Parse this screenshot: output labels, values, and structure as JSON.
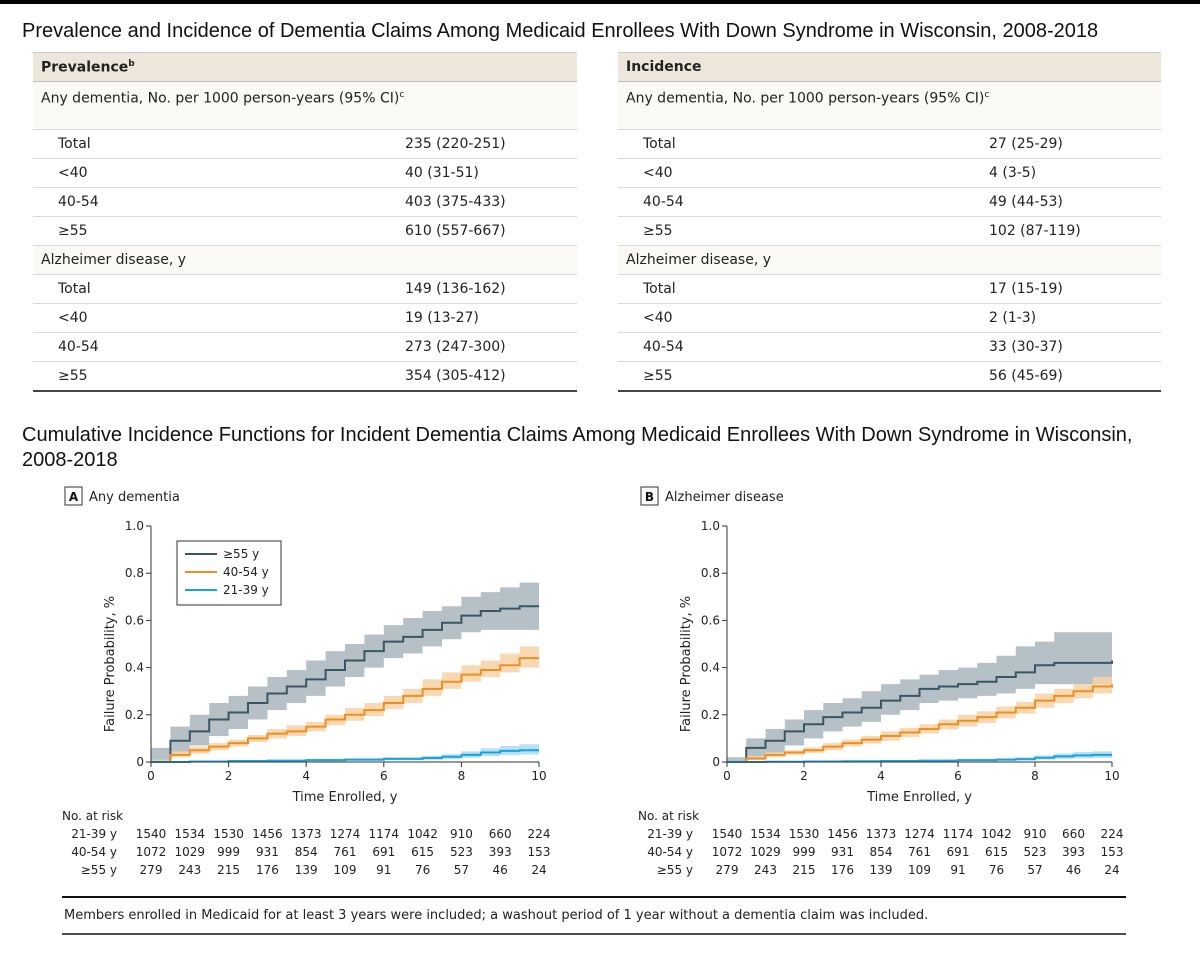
{
  "headings": {
    "table_title": "Prevalence and Incidence of Dementia Claims Among Medicaid Enrollees With Down Syndrome in Wisconsin, 2008-2018",
    "figure_title": "Cumulative Incidence Functions for Incident Dementia Claims Among Medicaid Enrollees With Down Syndrome in Wisconsin, 2008-2018"
  },
  "tables": {
    "prevalence": {
      "header": "Prevalence",
      "header_sup": "b",
      "group1": "Any dementia, No. per 1000 person-years (95% CI)",
      "group1_sup": "c",
      "group1_rows": [
        {
          "label": "Total",
          "value": "235 (220-251)"
        },
        {
          "label": "<40",
          "value": "40 (31-51)"
        },
        {
          "label": "40-54",
          "value": "403 (375-433)"
        },
        {
          "label": "≥55",
          "value": "610 (557-667)"
        }
      ],
      "group2": "Alzheimer disease, y",
      "group2_rows": [
        {
          "label": "Total",
          "value": "149 (136-162)"
        },
        {
          "label": "<40",
          "value": "19 (13-27)"
        },
        {
          "label": "40-54",
          "value": "273 (247-300)"
        },
        {
          "label": "≥55",
          "value": "354 (305-412)"
        }
      ]
    },
    "incidence": {
      "header": "Incidence",
      "header_sup": "",
      "group1": "Any dementia, No. per 1000 person-years (95% CI)",
      "group1_sup": "c",
      "group1_rows": [
        {
          "label": "Total",
          "value": "27 (25-29)"
        },
        {
          "label": "<40",
          "value": "4 (3-5)"
        },
        {
          "label": "40-54",
          "value": "49 (44-53)"
        },
        {
          "label": "≥55",
          "value": "102 (87-119)"
        }
      ],
      "group2": "Alzheimer disease, y",
      "group2_rows": [
        {
          "label": "Total",
          "value": "17 (15-19)"
        },
        {
          "label": "<40",
          "value": "2 (1-3)"
        },
        {
          "label": "40-54",
          "value": "33 (30-37)"
        },
        {
          "label": "≥55",
          "value": "56 (45-69)"
        }
      ]
    }
  },
  "colors": {
    "ge55": "#3a5563",
    "ge55_band": "#a8b6bd",
    "age40_54": "#ef8f1f",
    "age40_54_band": "#f8d2a6",
    "age21_39": "#1aa3de",
    "age21_39_band": "#a9dcf3",
    "axis": "#333333"
  },
  "footnote": "Members enrolled in Medicaid for at least 3 years were included; a washout period of 1 year without a dementia claim was included.",
  "chart_data": [
    {
      "type": "line",
      "panel_letter": "A",
      "title": "Any dementia",
      "xlabel": "Time Enrolled, y",
      "ylabel": "Failure Probability, %",
      "xlim": [
        0,
        10
      ],
      "ylim": [
        0,
        1.0
      ],
      "xticks": [
        0,
        2,
        4,
        6,
        8,
        10
      ],
      "yticks": [
        0,
        0.2,
        0.4,
        0.6,
        0.8,
        1.0
      ],
      "ytick_labels": [
        "0",
        "0.2",
        "0.4",
        "0.6",
        "0.8",
        "1.0"
      ],
      "legend_position": "top-left",
      "series": [
        {
          "name": "≥55 y",
          "color_key": "ge55",
          "x": [
            0,
            0.5,
            1,
            1.5,
            2,
            2.5,
            3,
            3.5,
            4,
            4.5,
            5,
            5.5,
            6,
            6.5,
            7,
            7.5,
            8,
            8.5,
            9,
            9.5,
            10
          ],
          "y": [
            0,
            0.09,
            0.13,
            0.18,
            0.21,
            0.25,
            0.29,
            0.32,
            0.35,
            0.39,
            0.43,
            0.47,
            0.51,
            0.53,
            0.56,
            0.59,
            0.62,
            0.64,
            0.65,
            0.66,
            0.66
          ],
          "lower": [
            0,
            0.04,
            0.07,
            0.11,
            0.14,
            0.18,
            0.22,
            0.25,
            0.28,
            0.32,
            0.36,
            0.4,
            0.44,
            0.46,
            0.49,
            0.52,
            0.55,
            0.56,
            0.56,
            0.56,
            0.56
          ],
          "upper": [
            0.06,
            0.15,
            0.2,
            0.25,
            0.28,
            0.32,
            0.36,
            0.39,
            0.43,
            0.47,
            0.5,
            0.54,
            0.58,
            0.61,
            0.64,
            0.66,
            0.7,
            0.72,
            0.74,
            0.76,
            0.76
          ]
        },
        {
          "name": "40-54 y",
          "color_key": "age40_54",
          "x": [
            0,
            0.5,
            1,
            1.5,
            2,
            2.5,
            3,
            3.5,
            4,
            4.5,
            5,
            5.5,
            6,
            6.5,
            7,
            7.5,
            8,
            8.5,
            9,
            9.5,
            10
          ],
          "y": [
            0,
            0.03,
            0.05,
            0.065,
            0.08,
            0.1,
            0.12,
            0.13,
            0.15,
            0.18,
            0.2,
            0.22,
            0.25,
            0.28,
            0.31,
            0.34,
            0.37,
            0.39,
            0.41,
            0.44,
            0.44
          ],
          "lower": [
            0,
            0.02,
            0.035,
            0.05,
            0.065,
            0.085,
            0.1,
            0.11,
            0.13,
            0.155,
            0.175,
            0.195,
            0.225,
            0.25,
            0.28,
            0.31,
            0.34,
            0.36,
            0.38,
            0.4,
            0.4
          ],
          "upper": [
            0.01,
            0.045,
            0.065,
            0.08,
            0.095,
            0.115,
            0.14,
            0.155,
            0.17,
            0.2,
            0.23,
            0.25,
            0.28,
            0.31,
            0.35,
            0.38,
            0.41,
            0.43,
            0.46,
            0.49,
            0.49
          ]
        },
        {
          "name": "21-39 y",
          "color_key": "age21_39",
          "x": [
            0,
            1,
            2,
            3,
            4,
            5,
            6,
            7,
            7.5,
            8,
            8.5,
            9,
            9.5,
            10
          ],
          "y": [
            0,
            0.002,
            0.004,
            0.006,
            0.008,
            0.01,
            0.013,
            0.017,
            0.022,
            0.03,
            0.04,
            0.047,
            0.05,
            0.05
          ],
          "lower": [
            0,
            0,
            0.001,
            0.002,
            0.003,
            0.005,
            0.007,
            0.009,
            0.012,
            0.018,
            0.025,
            0.03,
            0.032,
            0.032
          ],
          "upper": [
            0,
            0.005,
            0.008,
            0.01,
            0.013,
            0.016,
            0.02,
            0.026,
            0.033,
            0.045,
            0.058,
            0.068,
            0.075,
            0.075
          ]
        }
      ],
      "risk_table": {
        "title": "No. at risk",
        "times": [
          0,
          1,
          2,
          3,
          4,
          5,
          6,
          7,
          8,
          9,
          10
        ],
        "rows": [
          {
            "label": "21-39 y",
            "values": [
              "1540",
              "1534",
              "1530",
              "1456",
              "1373",
              "1274",
              "1174",
              "1042",
              "910",
              "660",
              "224"
            ]
          },
          {
            "label": "40-54 y",
            "values": [
              "1072",
              "1029",
              "999",
              "931",
              "854",
              "761",
              "691",
              "615",
              "523",
              "393",
              "153"
            ]
          },
          {
            "label": "≥55 y",
            "values": [
              "279",
              "243",
              "215",
              "176",
              "139",
              "109",
              "91",
              "76",
              "57",
              "46",
              "24"
            ]
          }
        ]
      }
    },
    {
      "type": "line",
      "panel_letter": "B",
      "title": "Alzheimer disease",
      "xlabel": "Time Enrolled, y",
      "ylabel": "Failure Probability, %",
      "xlim": [
        0,
        10
      ],
      "ylim": [
        0,
        1.0
      ],
      "xticks": [
        0,
        2,
        4,
        6,
        8,
        10
      ],
      "yticks": [
        0,
        0.2,
        0.4,
        0.6,
        0.8,
        1.0
      ],
      "ytick_labels": [
        "0",
        "0.2",
        "0.4",
        "0.6",
        "0.8",
        "1.0"
      ],
      "series": [
        {
          "name": "≥55 y",
          "color_key": "ge55",
          "x": [
            0,
            0.5,
            1,
            1.5,
            2,
            2.5,
            3,
            3.5,
            4,
            4.5,
            5,
            5.5,
            6,
            6.5,
            7,
            7.5,
            8,
            8.5,
            9,
            9.5,
            10
          ],
          "y": [
            0,
            0.06,
            0.09,
            0.13,
            0.16,
            0.19,
            0.21,
            0.23,
            0.26,
            0.28,
            0.31,
            0.32,
            0.33,
            0.34,
            0.36,
            0.38,
            0.41,
            0.42,
            0.42,
            0.42,
            0.43
          ],
          "lower": [
            0,
            0.02,
            0.04,
            0.07,
            0.1,
            0.13,
            0.15,
            0.17,
            0.2,
            0.22,
            0.25,
            0.26,
            0.27,
            0.28,
            0.29,
            0.31,
            0.33,
            0.33,
            0.33,
            0.33,
            0.33
          ],
          "upper": [
            0.02,
            0.1,
            0.14,
            0.18,
            0.22,
            0.25,
            0.27,
            0.3,
            0.33,
            0.35,
            0.37,
            0.39,
            0.4,
            0.42,
            0.45,
            0.49,
            0.51,
            0.55,
            0.55,
            0.55,
            0.55
          ]
        },
        {
          "name": "40-54 y",
          "color_key": "age40_54",
          "x": [
            0,
            0.5,
            1,
            1.5,
            2,
            2.5,
            3,
            3.5,
            4,
            4.5,
            5,
            5.5,
            6,
            6.5,
            7,
            7.5,
            8,
            8.5,
            9,
            9.5,
            10
          ],
          "y": [
            0,
            0.015,
            0.03,
            0.04,
            0.05,
            0.065,
            0.08,
            0.095,
            0.11,
            0.125,
            0.14,
            0.16,
            0.175,
            0.19,
            0.21,
            0.23,
            0.26,
            0.28,
            0.3,
            0.32,
            0.33
          ],
          "lower": [
            0,
            0.008,
            0.02,
            0.03,
            0.038,
            0.05,
            0.065,
            0.078,
            0.09,
            0.105,
            0.12,
            0.138,
            0.15,
            0.165,
            0.185,
            0.205,
            0.23,
            0.25,
            0.27,
            0.29,
            0.29
          ],
          "upper": [
            0.005,
            0.025,
            0.04,
            0.05,
            0.062,
            0.08,
            0.095,
            0.11,
            0.13,
            0.145,
            0.16,
            0.18,
            0.2,
            0.215,
            0.235,
            0.255,
            0.29,
            0.31,
            0.33,
            0.36,
            0.37
          ]
        },
        {
          "name": "21-39 y",
          "color_key": "age21_39",
          "x": [
            0,
            1,
            2,
            3,
            4,
            5,
            6,
            7,
            7.5,
            8,
            8.5,
            9,
            9.5,
            10
          ],
          "y": [
            0,
            0.001,
            0.002,
            0.003,
            0.004,
            0.006,
            0.008,
            0.01,
            0.012,
            0.018,
            0.024,
            0.028,
            0.03,
            0.03
          ],
          "lower": [
            0,
            0,
            0,
            0.001,
            0.002,
            0.003,
            0.004,
            0.005,
            0.006,
            0.01,
            0.014,
            0.016,
            0.018,
            0.018
          ],
          "upper": [
            0,
            0.003,
            0.005,
            0.006,
            0.008,
            0.01,
            0.012,
            0.016,
            0.02,
            0.028,
            0.036,
            0.042,
            0.045,
            0.045
          ]
        }
      ],
      "risk_table": {
        "title": "No. at risk",
        "times": [
          0,
          1,
          2,
          3,
          4,
          5,
          6,
          7,
          8,
          9,
          10
        ],
        "rows": [
          {
            "label": "21-39 y",
            "values": [
              "1540",
              "1534",
              "1530",
              "1456",
              "1373",
              "1274",
              "1174",
              "1042",
              "910",
              "660",
              "224"
            ]
          },
          {
            "label": "40-54 y",
            "values": [
              "1072",
              "1029",
              "999",
              "931",
              "854",
              "761",
              "691",
              "615",
              "523",
              "393",
              "153"
            ]
          },
          {
            "label": "≥55 y",
            "values": [
              "279",
              "243",
              "215",
              "176",
              "139",
              "109",
              "91",
              "76",
              "57",
              "46",
              "24"
            ]
          }
        ]
      }
    }
  ]
}
